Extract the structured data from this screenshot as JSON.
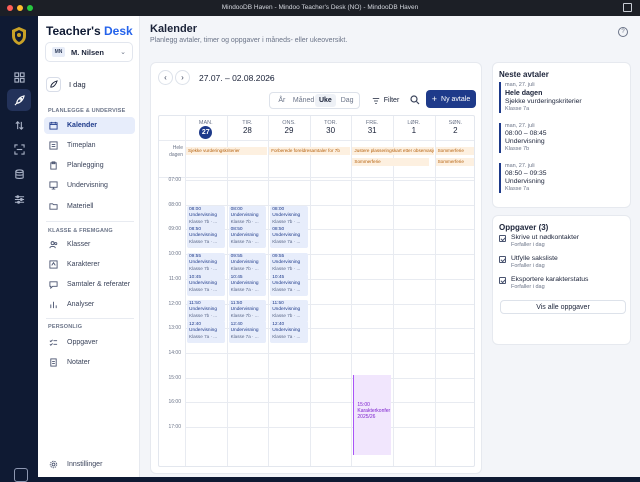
{
  "window": {
    "title": "MindooDB Haven - Mindoo Teacher's Desk (NO) - MindooDB Haven"
  },
  "brand": {
    "part1": "Teacher's ",
    "part2": "Desk"
  },
  "user": {
    "initials": "MN",
    "name": "M. Nilsen"
  },
  "sidebar": {
    "today": "I dag",
    "section1": "PLANLEGGE & UNDERVISE",
    "planning": [
      "Kalender",
      "Timeplan",
      "Planlegging",
      "Undervisning",
      "Materiell"
    ],
    "section2": "KLASSE & FREMGANG",
    "class": [
      "Klasser",
      "Karakterer",
      "Samtaler & referater",
      "Analyser"
    ],
    "section3": "PERSONLIG",
    "personal": [
      "Oppgaver",
      "Notater"
    ],
    "settings": "Innstillinger"
  },
  "header": {
    "title": "Kalender",
    "subtitle": "Planlegg avtaler, timer og oppgaver i måneds- eller ukeoversikt.",
    "help": "?"
  },
  "calendar": {
    "range": "27.07. – 02.08.2026",
    "views": [
      "År",
      "Måned",
      "Uke",
      "Dag"
    ],
    "active_view": "Uke",
    "filter": "Filter",
    "new_event": "Ny avtale",
    "days": [
      {
        "name": "MAN.",
        "num": "27",
        "today": true
      },
      {
        "name": "TIR.",
        "num": "28"
      },
      {
        "name": "ONS.",
        "num": "29"
      },
      {
        "name": "TOR.",
        "num": "30"
      },
      {
        "name": "FRE.",
        "num": "31"
      },
      {
        "name": "LØR.",
        "num": "1"
      },
      {
        "name": "SØN.",
        "num": "2"
      }
    ],
    "allday_label": "Hele dagen",
    "allday_events": [
      {
        "text": "Sjekke vurderingskriterier"
      },
      {
        "text": "Forberede foreldresamtaler for 7b"
      },
      {
        "text": "Justere plasseringskart etter observasjon"
      },
      {
        "text": "Sommerferie"
      },
      {
        "text": "Sommerferie"
      },
      {
        "text": "Sommerferie"
      }
    ],
    "times": [
      "07:00",
      "08:00",
      "09:00",
      "10:00",
      "11:00",
      "12:00",
      "13:00",
      "14:00",
      "15:00",
      "16:00",
      "17:00"
    ],
    "events": [
      {
        "time": "08:00",
        "name": "Undervisning",
        "class": "Klasse 7b · ..."
      },
      {
        "time": "08:50",
        "name": "Undervisning",
        "class": "Klasse 7a · ..."
      },
      {
        "time": "09:55",
        "name": "Undervisning",
        "class": "Klasse 7b · ..."
      },
      {
        "time": "10:45",
        "name": "Undervisning",
        "class": "Klasse 7a · ..."
      },
      {
        "time": "11:50",
        "name": "Undervisning",
        "class": "Klasse 7b · ..."
      },
      {
        "time": "12:40",
        "name": "Undervisning",
        "class": "Klasse 7a · ..."
      }
    ],
    "special_event": {
      "time": "15:00",
      "name": "Karakterkonfer",
      "class": "2025/26"
    }
  },
  "upcoming": {
    "title": "Neste avtaler",
    "items": [
      {
        "date": "man, 27. juli",
        "time": "Hele dagen",
        "name": "Sjekke vurderingskriterier",
        "class": "Klasse 7a"
      },
      {
        "date": "man, 27. juli",
        "time": "08:00 – 08:45",
        "name": "Undervisning",
        "class": "Klasse 7b"
      },
      {
        "date": "man, 27. juli",
        "time": "08:50 – 09:35",
        "name": "Undervisning",
        "class": "Klasse 7a"
      }
    ]
  },
  "tasks": {
    "title": "Oppgaver (3)",
    "items": [
      {
        "title": "Skrive ut nødkontakter",
        "due": "Forfaller i dag"
      },
      {
        "title": "Utfylle saksliste",
        "due": "Forfaller i dag"
      },
      {
        "title": "Eksportere karakterstatus",
        "due": "Forfaller i dag"
      }
    ],
    "all": "Vis alle oppgaver"
  }
}
